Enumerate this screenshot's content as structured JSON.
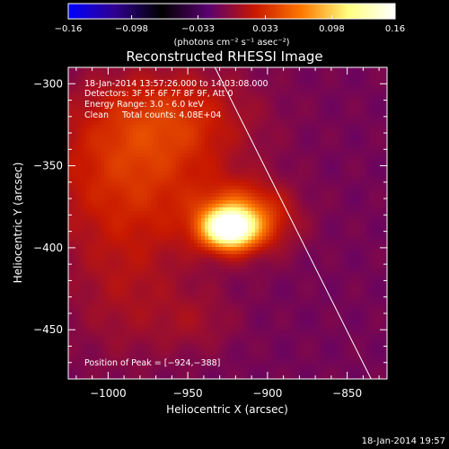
{
  "chart_data": {
    "type": "heatmap",
    "title": "Reconstructed RHESSI Image",
    "xlabel": "Heliocentric X (arcsec)",
    "ylabel": "Heliocentric Y (arcsec)",
    "xlim": [
      -1025,
      -825
    ],
    "ylim": [
      -480,
      -290
    ],
    "x_ticks": [
      -1000,
      -950,
      -900,
      -850
    ],
    "x_tick_labels": [
      "−1000",
      "−950",
      "−900",
      "−850"
    ],
    "y_ticks": [
      -300,
      -350,
      -400,
      -450
    ],
    "y_tick_labels": [
      "−300",
      "−350",
      "−400",
      "−450"
    ],
    "colorbar": {
      "range": [
        -0.16,
        0.16
      ],
      "ticks": [
        -0.16,
        -0.098,
        -0.033,
        0.033,
        0.098,
        0.16
      ],
      "tick_labels": [
        "−0.16",
        "−0.098",
        "−0.033",
        "0.033",
        "0.098",
        "0.16"
      ],
      "unit_label": "(photons cm⁻² s⁻¹ asec⁻²)",
      "colors": [
        "#0000ff",
        "#300090",
        "#000000",
        "#5a0070",
        "#c81800",
        "#ff7800",
        "#ffff80",
        "#ffffff"
      ]
    },
    "annotations": [
      "18-Jan-2014 13:57:26.000 to 14:03:08.000",
      "Detectors: 3F 5F 6F 7F 8F 9F, Att 0",
      "Energy Range: 3.0 - 6.0 keV",
      "Clean     Total counts: 4.08E+04"
    ],
    "peak_label": "Position of Peak = [−924,−388]",
    "peak": [
      -924,
      -388
    ],
    "limb_line": [
      [
        -933,
        -290
      ],
      [
        -835,
        -480
      ]
    ],
    "sources": [
      {
        "x": -924,
        "y": -388,
        "sx": 11,
        "sy": 8,
        "amp": 0.16
      },
      {
        "x": -915,
        "y": -382,
        "sx": 20,
        "sy": 14,
        "amp": 0.07
      },
      {
        "x": -985,
        "y": -355,
        "sx": 40,
        "sy": 35,
        "amp": 0.045
      },
      {
        "x": -960,
        "y": -320,
        "sx": 35,
        "sy": 20,
        "amp": 0.03
      },
      {
        "x": -990,
        "y": -430,
        "sx": 25,
        "sy": 30,
        "amp": 0.018
      },
      {
        "x": -945,
        "y": -445,
        "sx": 18,
        "sy": 14,
        "amp": 0.015
      }
    ]
  },
  "footer": {
    "timestamp": "18-Jan-2014 19:57"
  }
}
